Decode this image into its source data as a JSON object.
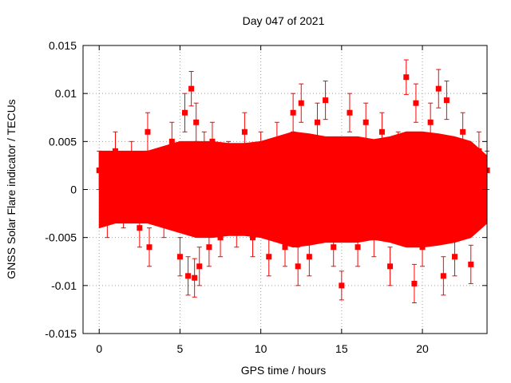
{
  "chart_data": {
    "type": "scatter",
    "title": "Day 047 of 2021",
    "xlabel": "GPS time / hours",
    "ylabel": "GNSS Solar Flare indicator / TECUs",
    "xlim": [
      -1,
      24
    ],
    "ylim": [
      -0.015,
      0.015
    ],
    "xticks": [
      0,
      5,
      10,
      15,
      20
    ],
    "xtick_labels": [
      "0",
      "5",
      "10",
      "15",
      "20"
    ],
    "yticks": [
      -0.015,
      -0.01,
      -0.005,
      0,
      0.005,
      0.01,
      0.015
    ],
    "ytick_labels": [
      "-0.015",
      "-0.01",
      "-0.005",
      "0",
      "0.005",
      "0.01",
      "0.015"
    ],
    "grid": true,
    "error_bars": true,
    "series": [
      {
        "color": "#ff0000",
        "marker": "square",
        "x": [
          0,
          0.5,
          1,
          1.5,
          2,
          2.5,
          3,
          3.1,
          3.5,
          4,
          4.5,
          5,
          5.3,
          5.5,
          5.7,
          5.9,
          6,
          6.2,
          6.5,
          6.8,
          7,
          7.5,
          8,
          8.5,
          9,
          9.5,
          10,
          10.5,
          11,
          11.5,
          12,
          12.3,
          12.5,
          13,
          13.5,
          14,
          14.5,
          15,
          15.5,
          16,
          16.5,
          17,
          17.5,
          18,
          18.5,
          19,
          19.5,
          19.6,
          20,
          20.5,
          21,
          21.3,
          21.5,
          22,
          22.5,
          23,
          23.5,
          24
        ],
        "y": [
          0.002,
          -0.003,
          0.004,
          -0.002,
          0.003,
          -0.004,
          0.006,
          -0.006,
          0.001,
          -0.003,
          0.005,
          -0.007,
          0.008,
          -0.009,
          0.0105,
          -0.0092,
          0.007,
          -0.008,
          0.004,
          -0.006,
          0.005,
          -0.005,
          0.003,
          -0.004,
          0.006,
          -0.005,
          0.004,
          -0.007,
          0.005,
          -0.006,
          0.008,
          -0.008,
          0.009,
          -0.007,
          0.007,
          0.0093,
          -0.006,
          -0.01,
          0.008,
          -0.006,
          0.007,
          -0.005,
          0.006,
          -0.008,
          0.004,
          0.0117,
          -0.0098,
          0.009,
          -0.006,
          0.007,
          0.0105,
          -0.009,
          0.0093,
          -0.007,
          0.006,
          -0.0078,
          0.004,
          0.002
        ],
        "err": [
          0.002,
          0.002,
          0.002,
          0.002,
          0.002,
          0.002,
          0.002,
          0.002,
          0.002,
          0.002,
          0.002,
          0.002,
          0.002,
          0.002,
          0.0018,
          0.002,
          0.002,
          0.002,
          0.002,
          0.002,
          0.002,
          0.002,
          0.002,
          0.002,
          0.002,
          0.002,
          0.002,
          0.002,
          0.002,
          0.002,
          0.002,
          0.002,
          0.002,
          0.002,
          0.002,
          0.002,
          0.002,
          0.0015,
          0.002,
          0.002,
          0.002,
          0.002,
          0.002,
          0.002,
          0.002,
          0.0018,
          0.002,
          0.002,
          0.002,
          0.002,
          0.002,
          0.002,
          0.002,
          0.002,
          0.002,
          0.002,
          0.002,
          0.002
        ],
        "band": {
          "x": [
            0,
            1,
            2,
            3,
            4,
            5,
            6,
            7,
            8,
            9,
            10,
            11,
            12,
            13,
            14,
            15,
            16,
            17,
            18,
            19,
            20,
            21,
            22,
            23,
            24
          ],
          "upper": [
            0.004,
            0.004,
            0.004,
            0.004,
            0.0045,
            0.005,
            0.005,
            0.005,
            0.0048,
            0.0048,
            0.005,
            0.0055,
            0.006,
            0.0058,
            0.0055,
            0.0055,
            0.0055,
            0.0052,
            0.0055,
            0.006,
            0.006,
            0.0058,
            0.0055,
            0.005,
            0.0035
          ],
          "lower": [
            -0.004,
            -0.0035,
            -0.0035,
            -0.0035,
            -0.004,
            -0.0045,
            -0.005,
            -0.005,
            -0.0048,
            -0.0048,
            -0.005,
            -0.0055,
            -0.006,
            -0.0058,
            -0.0055,
            -0.0055,
            -0.0055,
            -0.0052,
            -0.0055,
            -0.006,
            -0.006,
            -0.0058,
            -0.0055,
            -0.005,
            -0.0035
          ]
        }
      }
    ]
  }
}
